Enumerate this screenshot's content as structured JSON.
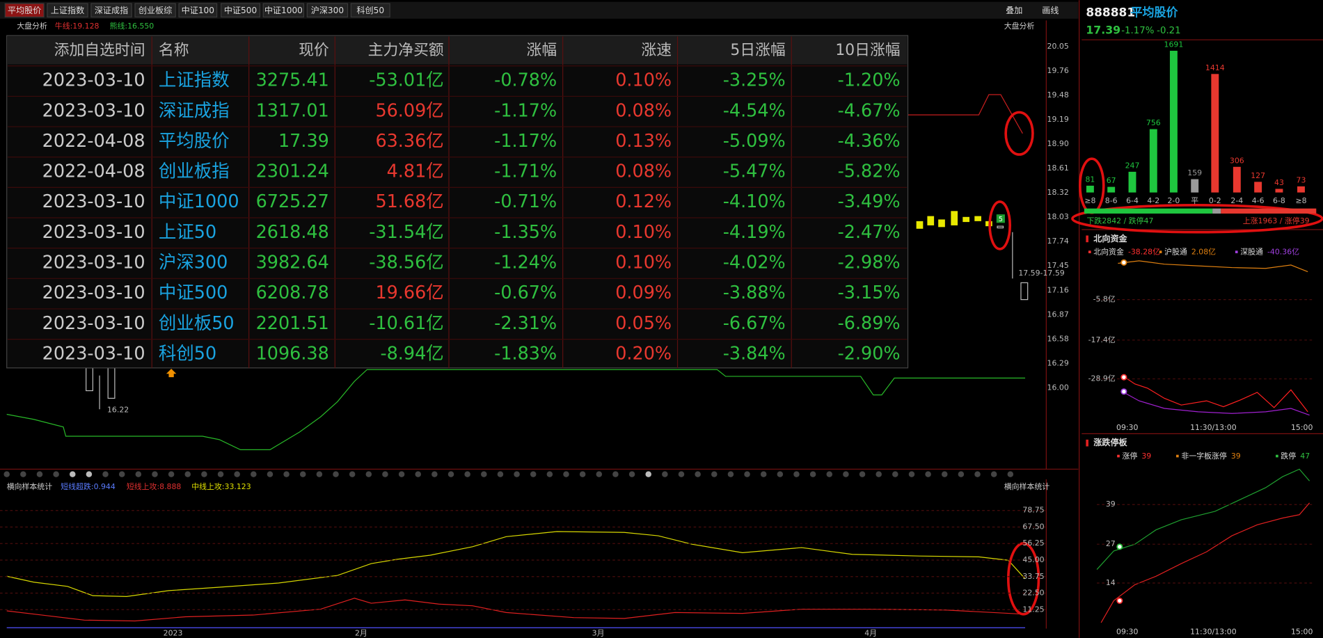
{
  "tabs": [
    "平均股价",
    "上证指数",
    "深证成指",
    "创业板综",
    "中证100",
    "中证500",
    "中证1000",
    "沪深300",
    "科创50"
  ],
  "toolbar": {
    "overlay": "叠加",
    "draw": "画线"
  },
  "main_chart": {
    "title": "大盘分析",
    "ma_short": "牛线:19.128",
    "ma_long": "熊线:16.550",
    "right_label": "大盘分析",
    "yticks": [
      "20.05",
      "19.76",
      "19.48",
      "19.19",
      "18.90",
      "18.61",
      "18.32",
      "18.03",
      "17.74",
      "17.45",
      "17.16",
      "16.87",
      "16.58",
      "16.29",
      "16.00"
    ],
    "low_label": "16.22",
    "range_label": "17.59-17.59",
    "badge": "5"
  },
  "table": {
    "header": [
      "添加自选时间",
      "名称",
      "现价",
      "主力净买额",
      "涨幅",
      "涨速",
      "5日涨幅",
      "10日涨幅"
    ],
    "rows": [
      [
        "2023-03-10",
        "上证指数",
        "3275.41",
        "-53.01亿",
        "-0.78%",
        "0.10%",
        "-3.25%",
        "-1.20%"
      ],
      [
        "2023-03-10",
        "深证成指",
        "1317.01",
        "56.09亿",
        "-1.17%",
        "0.08%",
        "-4.54%",
        "-4.67%"
      ],
      [
        "2022-04-08",
        "平均股价",
        "17.39",
        "63.36亿",
        "-1.17%",
        "0.13%",
        "-5.09%",
        "-4.36%"
      ],
      [
        "2022-04-08",
        "创业板指",
        "2301.24",
        "4.81亿",
        "-1.71%",
        "0.08%",
        "-5.47%",
        "-5.82%"
      ],
      [
        "2023-03-10",
        "中证1000",
        "6725.27",
        "51.68亿",
        "-0.71%",
        "0.12%",
        "-4.10%",
        "-3.49%"
      ],
      [
        "2023-03-10",
        "上证50",
        "2618.48",
        "-31.54亿",
        "-1.35%",
        "0.10%",
        "-4.19%",
        "-2.47%"
      ],
      [
        "2023-03-10",
        "沪深300",
        "3982.64",
        "-38.56亿",
        "-1.24%",
        "0.10%",
        "-4.02%",
        "-2.98%"
      ],
      [
        "2023-03-10",
        "中证500",
        "6208.78",
        "19.66亿",
        "-0.67%",
        "0.09%",
        "-3.88%",
        "-3.15%"
      ],
      [
        "2023-03-10",
        "创业板50",
        "2201.51",
        "-10.61亿",
        "-2.31%",
        "0.05%",
        "-6.67%",
        "-6.89%"
      ],
      [
        "2023-03-10",
        "科创50",
        "1096.38",
        "-8.94亿",
        "-1.83%",
        "0.20%",
        "-3.84%",
        "-2.90%"
      ]
    ]
  },
  "bottom_chart": {
    "title": "横向样本统计",
    "legend": [
      "短线超跌:0.944",
      "短线上攻:8.888",
      "中线上攻:33.123"
    ],
    "right_label": "横向样本统计",
    "yticks": [
      "78.75",
      "67.50",
      "56.25",
      "45.00",
      "33.75",
      "22.50",
      "11.25"
    ],
    "xlabels": [
      "2023",
      "2月",
      "3月",
      "4月"
    ]
  },
  "quote": {
    "code": "888881",
    "name": "平均股价",
    "price": "17.39",
    "change_pct": "-1.17%",
    "change": "-0.21"
  },
  "distribution": {
    "type": "bar",
    "categories": [
      "≥8",
      "8-6",
      "6-4",
      "4-2",
      "2-0",
      "平",
      "0-2",
      "2-4",
      "4-6",
      "6-8",
      "≥8"
    ],
    "values": [
      81,
      67,
      247,
      756,
      1691,
      159,
      1414,
      306,
      127,
      43,
      73
    ],
    "colors": [
      "#1fc63f",
      "#1fc63f",
      "#1fc63f",
      "#1fc63f",
      "#1fc63f",
      "#9a9a9a",
      "#e8382f",
      "#e8382f",
      "#e8382f",
      "#e8382f",
      "#e8382f"
    ],
    "down_label": "下跌2842 / 跌停47",
    "up_label": "上涨1963 / 涨停39"
  },
  "north": {
    "title": "北向资金",
    "legend": [
      {
        "name": "北向资金",
        "value": "-38.28亿"
      },
      {
        "name": "沪股通",
        "value": "2.08亿"
      },
      {
        "name": "深股通",
        "value": "-40.36亿"
      }
    ],
    "yticks": [
      "-5.8亿",
      "-17.4亿",
      "-28.9亿"
    ],
    "xlabels": [
      "09:30",
      "11:30/13:00",
      "15:00"
    ]
  },
  "limit": {
    "title": "涨跌停板",
    "legend": [
      {
        "name": "涨停",
        "value": "39"
      },
      {
        "name": "非一字板涨停",
        "value": "39"
      },
      {
        "name": "跌停",
        "value": "47"
      }
    ],
    "yticks": [
      "39",
      "27",
      "14"
    ],
    "xlabels": [
      "09:30",
      "11:30/13:00",
      "15:00"
    ]
  }
}
